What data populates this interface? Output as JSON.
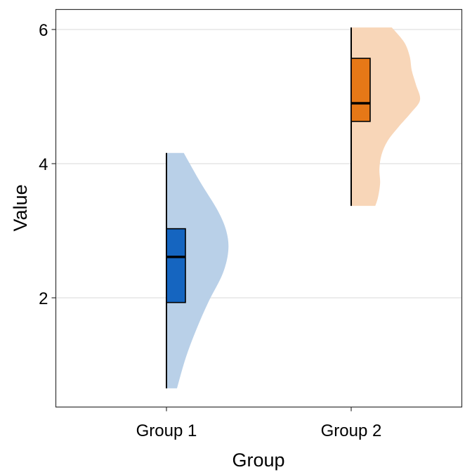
{
  "chart_data": {
    "type": "raincloud",
    "title": "",
    "xlabel": "Group",
    "ylabel": "Value",
    "categories": [
      "Group 1",
      "Group 2"
    ],
    "ylim": [
      0.4,
      6.3
    ],
    "yticks": [
      2,
      4,
      6
    ],
    "ytick_labels": [
      "2",
      "4",
      "6"
    ],
    "grid": "horizontal-major",
    "legend": "none",
    "series": [
      {
        "name": "Group 1",
        "box": {
          "min": 0.65,
          "q1": 1.93,
          "median": 2.61,
          "q3": 3.03,
          "max": 4.16
        },
        "fill": "#1565C0",
        "density_fill": "#B9D0E8",
        "density": [
          [
            4.16,
            0.28
          ],
          [
            3.72,
            0.55
          ],
          [
            3.3,
            0.83
          ],
          [
            2.99,
            0.97
          ],
          [
            2.7,
            1.0
          ],
          [
            2.36,
            0.91
          ],
          [
            1.94,
            0.68
          ],
          [
            1.52,
            0.48
          ],
          [
            1.1,
            0.31
          ],
          [
            0.65,
            0.17
          ]
        ]
      },
      {
        "name": "Group 2",
        "box": {
          "min": 3.37,
          "q1": 4.63,
          "median": 4.9,
          "q3": 5.57,
          "max": 6.03
        },
        "fill": "#E67817",
        "density_fill": "#F8D6B8",
        "density": [
          [
            6.03,
            0.59
          ],
          [
            5.81,
            0.77
          ],
          [
            5.6,
            0.85
          ],
          [
            5.39,
            0.88
          ],
          [
            5.18,
            0.94
          ],
          [
            4.95,
            1.0
          ],
          [
            4.76,
            0.87
          ],
          [
            4.55,
            0.69
          ],
          [
            4.34,
            0.53
          ],
          [
            4.13,
            0.44
          ],
          [
            3.92,
            0.41
          ],
          [
            3.71,
            0.42
          ],
          [
            3.5,
            0.39
          ],
          [
            3.37,
            0.35
          ]
        ]
      }
    ]
  }
}
